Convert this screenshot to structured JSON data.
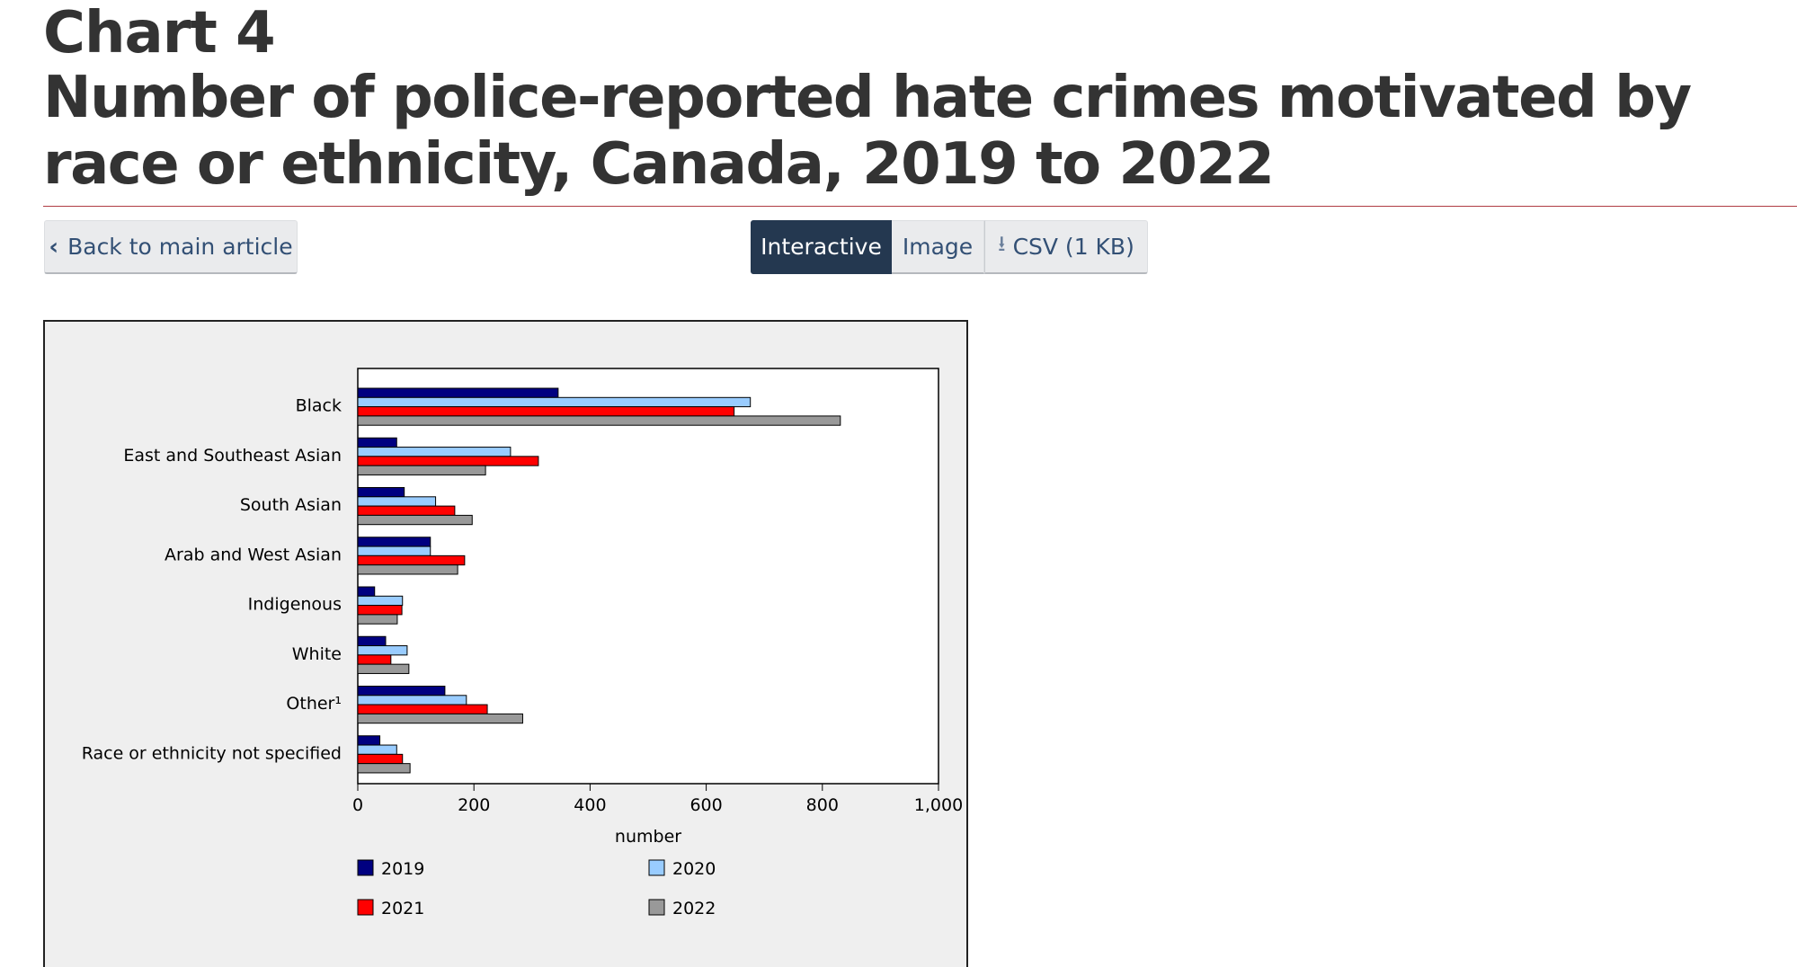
{
  "heading": {
    "label": "Chart 4",
    "title": "Number of police-reported hate crimes motivated by race or ethnicity, Canada, 2019 to 2022"
  },
  "toolbar": {
    "back_label": "Back to main article",
    "interactive_label": "Interactive",
    "image_label": "Image",
    "csv_label": "CSV (1 KB)"
  },
  "chart_data": {
    "type": "bar",
    "orientation": "horizontal",
    "categories": [
      "Black",
      "East and Southeast Asian",
      "South Asian",
      "Arab and West Asian",
      "Indigenous",
      "White",
      "Other¹",
      "Race or ethnicity not specified"
    ],
    "series": [
      {
        "name": "2019",
        "color": "#000080",
        "values": [
          345,
          67,
          80,
          125,
          29,
          48,
          150,
          38
        ]
      },
      {
        "name": "2020",
        "color": "#99ccff",
        "values": [
          676,
          263,
          134,
          125,
          77,
          85,
          187,
          67
        ]
      },
      {
        "name": "2021",
        "color": "#ff0000",
        "values": [
          648,
          311,
          167,
          184,
          76,
          57,
          223,
          77
        ]
      },
      {
        "name": "2022",
        "color": "#999999",
        "values": [
          831,
          220,
          197,
          172,
          68,
          88,
          284,
          90
        ]
      }
    ],
    "xlabel": "number",
    "xlim": [
      0,
      1000
    ],
    "xticks": [
      0,
      200,
      400,
      600,
      800,
      1000
    ],
    "xtick_labels": [
      "0",
      "200",
      "400",
      "600",
      "800",
      "1,000"
    ],
    "legend_placement": "bottom",
    "grid": false
  }
}
